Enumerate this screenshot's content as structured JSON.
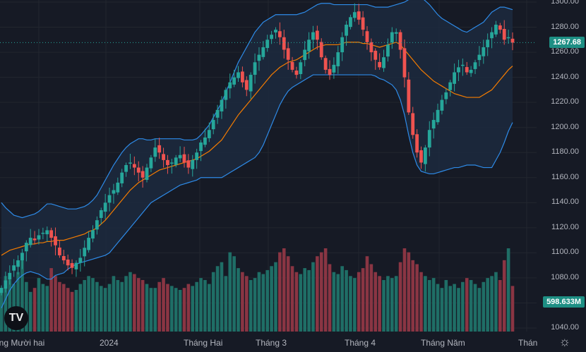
{
  "chart_data": {
    "type": "candlestick",
    "indicator": "Bollinger Bands",
    "colors": {
      "background": "#161a25",
      "up": "#26a69a",
      "down": "#ef5350",
      "vol_up": "#1f6e66",
      "vol_down": "#8a3543",
      "band": "#2e8be8",
      "basis": "#f57c00",
      "band_fill": "#1c2a3e",
      "grid": "#22262f"
    },
    "y_axis": {
      "min": 1040,
      "max": 1300,
      "ticks": [
        1040,
        1060,
        1080,
        1100,
        1120,
        1140,
        1160,
        1180,
        1200,
        1220,
        1240,
        1260,
        1280,
        1300
      ]
    },
    "x_labels": [
      "áng Mười hai",
      "2024",
      "Tháng Hai",
      "Tháng 3",
      "Tháng 4",
      "Tháng Năm",
      "Thán"
    ],
    "last_price": "1267.68",
    "last_volume": "598.633M",
    "closes": [
      1072,
      1078,
      1084,
      1090,
      1094,
      1100,
      1108,
      1112,
      1110,
      1114,
      1116,
      1118,
      1112,
      1106,
      1098,
      1094,
      1090,
      1088,
      1092,
      1096,
      1104,
      1112,
      1118,
      1126,
      1134,
      1140,
      1146,
      1150,
      1156,
      1164,
      1170,
      1172,
      1168,
      1164,
      1160,
      1168,
      1176,
      1184,
      1180,
      1174,
      1170,
      1172,
      1176,
      1178,
      1172,
      1168,
      1174,
      1180,
      1188,
      1192,
      1198,
      1206,
      1214,
      1222,
      1230,
      1236,
      1240,
      1244,
      1236,
      1230,
      1242,
      1252,
      1258,
      1264,
      1270,
      1274,
      1278,
      1272,
      1262,
      1254,
      1246,
      1242,
      1252,
      1262,
      1270,
      1276,
      1270,
      1256,
      1246,
      1242,
      1250,
      1260,
      1272,
      1282,
      1288,
      1292,
      1286,
      1278,
      1268,
      1260,
      1254,
      1248,
      1256,
      1266,
      1276,
      1276,
      1262,
      1240,
      1212,
      1194,
      1180,
      1172,
      1184,
      1198,
      1206,
      1214,
      1222,
      1228,
      1236,
      1244,
      1248,
      1250,
      1244,
      1246,
      1252,
      1258,
      1264,
      1270,
      1276,
      1282,
      1278,
      1270,
      1272,
      1267.68
    ],
    "basis": [
      1098,
      1100,
      1102,
      1103,
      1104,
      1105,
      1106,
      1107,
      1107,
      1108,
      1108,
      1109,
      1109,
      1110,
      1110,
      1110,
      1111,
      1112,
      1113,
      1114,
      1115,
      1117,
      1118,
      1120,
      1123,
      1126,
      1130,
      1134,
      1138,
      1142,
      1146,
      1150,
      1153,
      1156,
      1158,
      1160,
      1162,
      1164,
      1166,
      1167,
      1168,
      1169,
      1170,
      1171,
      1172,
      1173,
      1174,
      1175,
      1177,
      1179,
      1181,
      1184,
      1187,
      1190,
      1195,
      1200,
      1205,
      1210,
      1214,
      1218,
      1222,
      1226,
      1230,
      1234,
      1238,
      1242,
      1245,
      1248,
      1250,
      1252,
      1253,
      1254,
      1256,
      1258,
      1260,
      1262,
      1264,
      1265,
      1266,
      1266,
      1266,
      1266,
      1267,
      1268,
      1268,
      1268,
      1268,
      1267,
      1267,
      1266,
      1265,
      1264,
      1265,
      1266,
      1267,
      1268,
      1266,
      1262,
      1258,
      1254,
      1250,
      1246,
      1243,
      1240,
      1237,
      1235,
      1233,
      1231,
      1229,
      1227,
      1226,
      1225,
      1224,
      1224,
      1224,
      1224,
      1226,
      1228,
      1230,
      1234,
      1238,
      1242,
      1246,
      1249
    ],
    "upper": [
      1140,
      1136,
      1133,
      1130,
      1129,
      1128,
      1129,
      1130,
      1131,
      1133,
      1136,
      1139,
      1139,
      1138,
      1137,
      1136,
      1135,
      1135,
      1135,
      1136,
      1137,
      1139,
      1142,
      1146,
      1152,
      1158,
      1164,
      1170,
      1175,
      1180,
      1184,
      1187,
      1189,
      1191,
      1191,
      1190,
      1190,
      1191,
      1191,
      1191,
      1191,
      1191,
      1191,
      1191,
      1190,
      1190,
      1190,
      1191,
      1194,
      1198,
      1202,
      1208,
      1214,
      1220,
      1228,
      1236,
      1244,
      1252,
      1258,
      1264,
      1270,
      1276,
      1280,
      1284,
      1286,
      1288,
      1290,
      1290,
      1290,
      1290,
      1290,
      1290,
      1291,
      1292,
      1294,
      1296,
      1298,
      1299,
      1299,
      1299,
      1298,
      1298,
      1298,
      1298,
      1298,
      1298,
      1298,
      1298,
      1298,
      1297,
      1296,
      1296,
      1296,
      1296,
      1297,
      1298,
      1299,
      1300,
      1302,
      1304,
      1304,
      1304,
      1301,
      1298,
      1294,
      1290,
      1287,
      1285,
      1283,
      1281,
      1279,
      1277,
      1276,
      1278,
      1280,
      1282,
      1284,
      1288,
      1292,
      1294,
      1296,
      1296,
      1295,
      1294
    ],
    "lower": [
      1056,
      1063,
      1070,
      1075,
      1079,
      1082,
      1084,
      1085,
      1084,
      1083,
      1081,
      1079,
      1079,
      1082,
      1083,
      1084,
      1087,
      1089,
      1091,
      1092,
      1093,
      1094,
      1095,
      1096,
      1097,
      1098,
      1100,
      1104,
      1108,
      1112,
      1116,
      1120,
      1124,
      1128,
      1132,
      1136,
      1140,
      1142,
      1144,
      1146,
      1148,
      1150,
      1152,
      1154,
      1155,
      1156,
      1157,
      1158,
      1160,
      1160,
      1160,
      1160,
      1160,
      1160,
      1162,
      1164,
      1166,
      1168,
      1170,
      1172,
      1174,
      1176,
      1180,
      1186,
      1194,
      1202,
      1210,
      1218,
      1224,
      1229,
      1232,
      1234,
      1236,
      1238,
      1240,
      1242,
      1242,
      1242,
      1242,
      1242,
      1242,
      1242,
      1242,
      1242,
      1242,
      1242,
      1242,
      1242,
      1242,
      1242,
      1241,
      1239,
      1238,
      1236,
      1234,
      1230,
      1222,
      1210,
      1194,
      1180,
      1170,
      1165,
      1164,
      1163,
      1163,
      1164,
      1165,
      1166,
      1167,
      1168,
      1168,
      1169,
      1170,
      1170,
      1170,
      1169,
      1168,
      1168,
      1168,
      1174,
      1180,
      1188,
      1197,
      1204
    ],
    "volumes": [
      22,
      28,
      26,
      24,
      30,
      36,
      25,
      20,
      22,
      27,
      24,
      23,
      32,
      28,
      25,
      24,
      22,
      20,
      21,
      24,
      26,
      28,
      27,
      25,
      23,
      22,
      24,
      28,
      26,
      25,
      28,
      30,
      29,
      27,
      26,
      24,
      22,
      22,
      25,
      27,
      24,
      23,
      22,
      21,
      22,
      24,
      23,
      25,
      27,
      26,
      24,
      30,
      33,
      35,
      28,
      40,
      38,
      32,
      30,
      28,
      26,
      27,
      30,
      29,
      31,
      33,
      35,
      40,
      42,
      38,
      33,
      30,
      29,
      32,
      31,
      35,
      38,
      40,
      42,
      34,
      30,
      29,
      33,
      31,
      28,
      27,
      30,
      32,
      38,
      34,
      30,
      28,
      26,
      28,
      27,
      28,
      35,
      42,
      40,
      36,
      34,
      30,
      28,
      26,
      27,
      24,
      22,
      26,
      23,
      24,
      22,
      25,
      27,
      26,
      24,
      22,
      25,
      27,
      28,
      30,
      26,
      36,
      42,
      23
    ]
  }
}
